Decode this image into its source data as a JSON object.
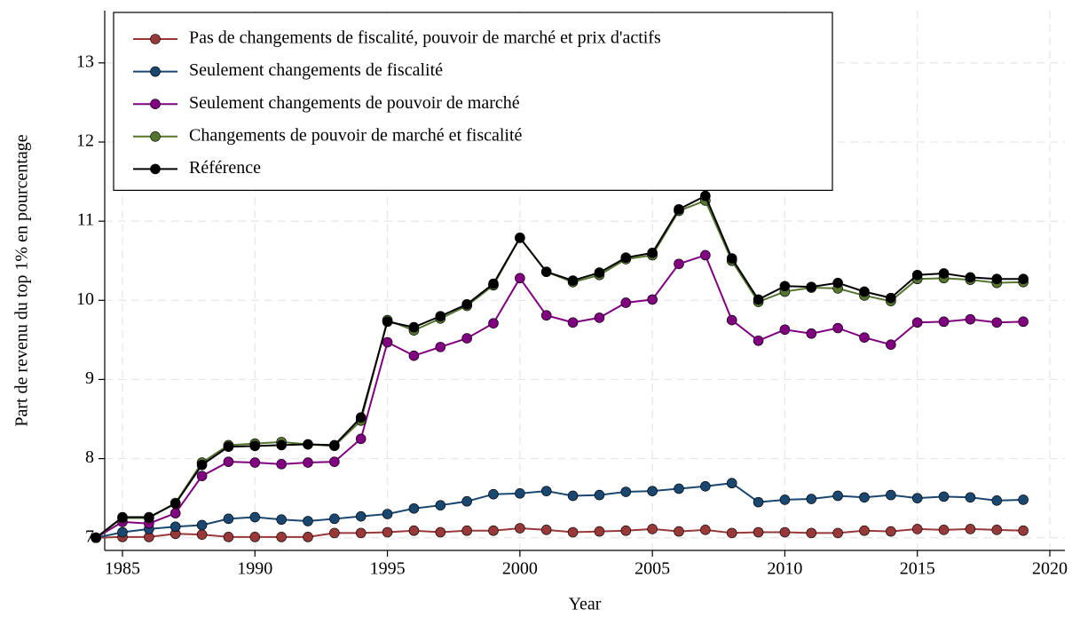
{
  "chart_data": {
    "type": "line",
    "x_label": "Year",
    "y_label": "Part de revenu du top 1% en pourcentage",
    "x": [
      1984,
      1985,
      1986,
      1987,
      1988,
      1989,
      1990,
      1991,
      1992,
      1993,
      1994,
      1995,
      1996,
      1997,
      1998,
      1999,
      2000,
      2001,
      2002,
      2003,
      2004,
      2005,
      2006,
      2007,
      2008,
      2009,
      2010,
      2011,
      2012,
      2013,
      2014,
      2015,
      2016,
      2017,
      2018,
      2019
    ],
    "series": [
      {
        "name": "Pas de changements de fiscalité, pouvoir de marché et prix d'actifs",
        "color": "#993838",
        "values": [
          7.0,
          7.01,
          7.01,
          7.05,
          7.04,
          7.01,
          7.01,
          7.01,
          7.01,
          7.06,
          7.06,
          7.07,
          7.09,
          7.07,
          7.09,
          7.09,
          7.12,
          7.1,
          7.07,
          7.08,
          7.09,
          7.11,
          7.08,
          7.1,
          7.06,
          7.07,
          7.07,
          7.06,
          7.06,
          7.09,
          7.08,
          7.11,
          7.1,
          7.11,
          7.1,
          7.09
        ]
      },
      {
        "name": "Seulement changements de fiscalité",
        "color": "#1a476f",
        "values": [
          7.0,
          7.07,
          7.11,
          7.14,
          7.16,
          7.24,
          7.26,
          7.23,
          7.21,
          7.24,
          7.27,
          7.3,
          7.37,
          7.41,
          7.46,
          7.55,
          7.56,
          7.59,
          7.53,
          7.54,
          7.58,
          7.59,
          7.62,
          7.65,
          7.69,
          7.45,
          7.48,
          7.49,
          7.53,
          7.51,
          7.54,
          7.5,
          7.52,
          7.51,
          7.47,
          7.48
        ]
      },
      {
        "name": "Seulement changements de pouvoir de marché",
        "color": "#800080",
        "values": [
          7.0,
          7.2,
          7.18,
          7.31,
          7.78,
          7.96,
          7.95,
          7.93,
          7.95,
          7.96,
          8.25,
          9.47,
          9.3,
          9.41,
          9.52,
          9.71,
          10.28,
          9.81,
          9.72,
          9.78,
          9.97,
          10.01,
          10.46,
          10.57,
          9.75,
          9.49,
          9.63,
          9.58,
          9.65,
          9.53,
          9.44,
          9.72,
          9.73,
          9.76,
          9.72,
          9.73
        ]
      },
      {
        "name": "Changements de pouvoir de marché et fiscalité",
        "color": "#55752f",
        "values": [
          7.0,
          7.25,
          7.25,
          7.44,
          7.95,
          8.17,
          8.19,
          8.21,
          8.18,
          8.16,
          8.48,
          9.75,
          9.62,
          9.77,
          9.93,
          10.19,
          10.79,
          10.36,
          10.23,
          10.32,
          10.52,
          10.57,
          11.13,
          11.26,
          10.5,
          9.98,
          10.11,
          10.16,
          10.15,
          10.06,
          9.99,
          10.27,
          10.28,
          10.26,
          10.22,
          10.23
        ]
      },
      {
        "name": "Référence",
        "color": "#000000",
        "values": [
          7.0,
          7.26,
          7.26,
          7.43,
          7.92,
          8.15,
          8.16,
          8.17,
          8.18,
          8.17,
          8.52,
          9.73,
          9.66,
          9.8,
          9.95,
          10.21,
          10.79,
          10.36,
          10.25,
          10.35,
          10.54,
          10.6,
          11.15,
          11.32,
          10.53,
          10.01,
          10.18,
          10.17,
          10.22,
          10.11,
          10.03,
          10.32,
          10.34,
          10.29,
          10.27,
          10.27
        ]
      }
    ],
    "xlim": [
      1984.33,
      2020.57
    ],
    "ylim": [
      6.84,
      13.66
    ],
    "xticks": [
      1985,
      1990,
      1995,
      2000,
      2005,
      2010,
      2015,
      2020
    ],
    "yticks": [
      7,
      8,
      9,
      10,
      11,
      12,
      13
    ],
    "grid": true,
    "legend": "upper left"
  }
}
